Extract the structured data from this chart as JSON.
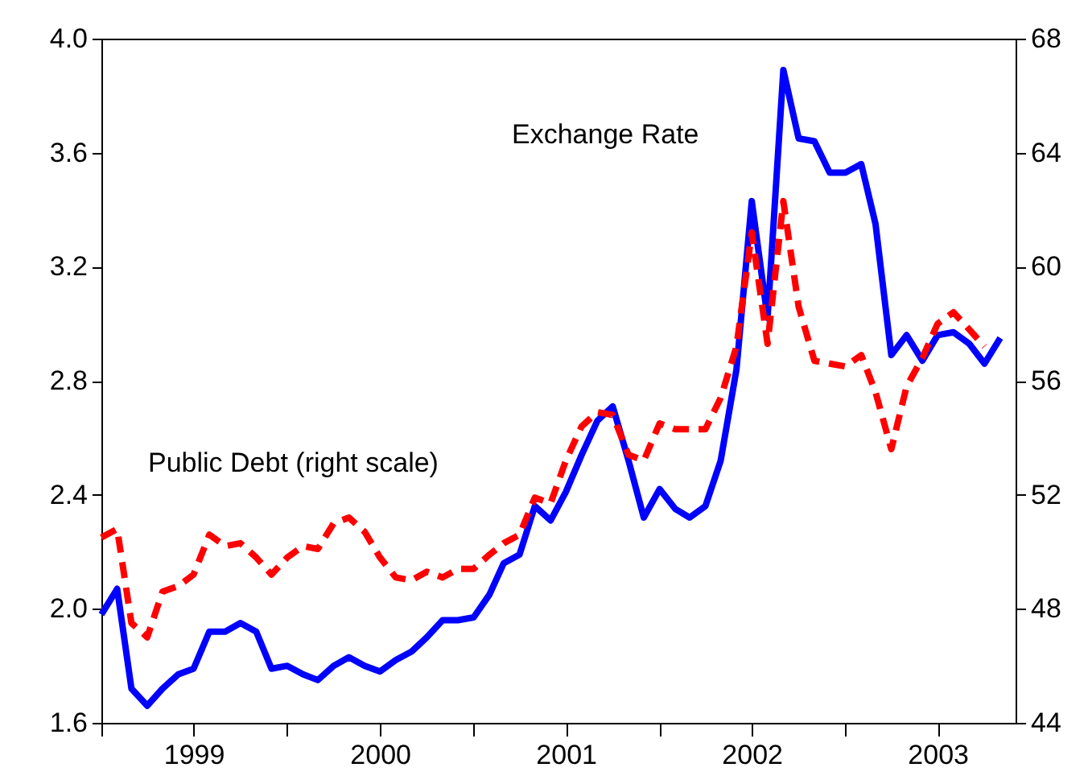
{
  "chart_data": {
    "type": "line",
    "x": [
      "1999-01",
      "1999-02",
      "1999-03",
      "1999-04",
      "1999-05",
      "1999-06",
      "1999-07",
      "1999-08",
      "1999-09",
      "1999-10",
      "1999-11",
      "1999-12",
      "2000-01",
      "2000-02",
      "2000-03",
      "2000-04",
      "2000-05",
      "2000-06",
      "2000-07",
      "2000-08",
      "2000-09",
      "2000-10",
      "2000-11",
      "2000-12",
      "2001-01",
      "2001-02",
      "2001-03",
      "2001-04",
      "2001-05",
      "2001-06",
      "2001-07",
      "2001-08",
      "2001-09",
      "2001-10",
      "2001-11",
      "2001-12",
      "2002-01",
      "2002-02",
      "2002-03",
      "2002-04",
      "2002-05",
      "2002-06",
      "2002-07",
      "2002-08",
      "2002-09",
      "2002-10",
      "2002-11",
      "2002-12",
      "2003-01",
      "2003-02",
      "2003-03",
      "2003-04",
      "2003-05",
      "2003-06",
      "2003-07",
      "2003-08",
      "2003-09",
      "2003-10",
      "2003-11"
    ],
    "series": [
      {
        "name": "Exchange Rate",
        "color": "#0000ff",
        "line_style": "solid",
        "values": [
          1.98,
          2.07,
          1.72,
          1.66,
          1.72,
          1.77,
          1.79,
          1.92,
          1.92,
          1.95,
          1.92,
          1.79,
          1.8,
          1.77,
          1.75,
          1.8,
          1.83,
          1.8,
          1.78,
          1.82,
          1.85,
          1.9,
          1.96,
          1.96,
          1.97,
          2.05,
          2.16,
          2.19,
          2.36,
          2.31,
          2.41,
          2.54,
          2.66,
          2.71,
          2.52,
          2.32,
          2.42,
          2.35,
          2.32,
          2.36,
          2.52,
          2.84,
          3.43,
          3.02,
          3.89,
          3.65,
          3.64,
          3.53,
          3.53,
          3.56,
          3.35,
          2.89,
          2.96,
          2.87,
          2.96,
          2.97,
          2.93,
          2.86,
          2.95
        ]
      },
      {
        "name": "Public Debt (right scale)",
        "color": "#ff0000",
        "line_style": "dashed",
        "axis": "y2",
        "values": [
          50.5,
          50.8,
          47.5,
          47.0,
          48.6,
          48.8,
          49.2,
          50.6,
          50.2,
          50.3,
          49.8,
          49.2,
          49.8,
          50.2,
          50.1,
          51.0,
          51.2,
          50.7,
          49.8,
          49.1,
          49.0,
          49.3,
          49.1,
          49.4,
          49.4,
          49.9,
          50.3,
          50.6,
          51.9,
          51.7,
          53.2,
          54.4,
          54.9,
          54.8,
          53.4,
          53.2,
          54.5,
          54.3,
          54.3,
          54.3,
          55.4,
          57.2,
          61.2,
          57.3,
          62.3,
          58.6,
          56.7,
          56.6,
          56.5,
          56.9,
          55.6,
          53.6,
          55.8,
          56.8,
          58.0,
          58.4,
          57.8,
          57.2,
          null
        ]
      }
    ],
    "xlim": [
      "1999-01",
      "2003-12"
    ],
    "xticks": [
      {
        "value": "1999-01",
        "label": null
      },
      {
        "value": "1999-07",
        "label": "1999"
      },
      {
        "value": "2000-01",
        "label": null
      },
      {
        "value": "2000-07",
        "label": "2000"
      },
      {
        "value": "2001-01",
        "label": null
      },
      {
        "value": "2001-07",
        "label": "2001"
      },
      {
        "value": "2002-01",
        "label": null
      },
      {
        "value": "2002-07",
        "label": "2002"
      },
      {
        "value": "2003-01",
        "label": null
      },
      {
        "value": "2003-07",
        "label": "2003"
      }
    ],
    "ylim": [
      1.6,
      4.0
    ],
    "yticks": [
      1.6,
      {
        "value": 2.0,
        "label": "2.0"
      },
      2.4,
      2.8,
      3.2,
      3.6,
      {
        "value": 4.0,
        "label": "4.0"
      }
    ],
    "y2lim": [
      44,
      68
    ],
    "y2ticks": [
      44,
      48,
      52,
      56,
      60,
      64,
      68
    ],
    "grid": false,
    "marker": "none"
  }
}
